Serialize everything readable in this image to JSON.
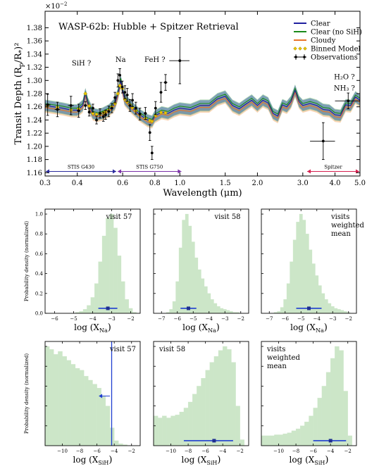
{
  "chart_data": [
    {
      "type": "line",
      "title": "WASP-62b: Hubble + Spitzer Retrieval",
      "ylabel": "Transit Depth (R_p/R_*)^2",
      "ylabel_main": "Transit Depth",
      "ylabel_sub": "p",
      "ylabel_star": "*",
      "offset_label": "×10",
      "offset_exp": "−2",
      "xlabel": "Wavelength (μm)",
      "x_scale": "log",
      "xlim": [
        0.3,
        5.0
      ],
      "ylim": [
        1.155,
        1.405
      ],
      "xticks": [
        {
          "v": 0.3,
          "t": "0.3"
        },
        {
          "v": 0.4,
          "t": "0.4"
        },
        {
          "v": 0.6,
          "t": "0.6"
        },
        {
          "v": 0.8,
          "t": "0.8"
        },
        {
          "v": 1.0,
          "t": "1.0"
        },
        {
          "v": 1.5,
          "t": "1.5"
        },
        {
          "v": 2.0,
          "t": "2.0"
        },
        {
          "v": 3.0,
          "t": "3.0"
        },
        {
          "v": 4.0,
          "t": "4.0"
        },
        {
          "v": 5.0,
          "t": "5.0"
        }
      ],
      "yticks": [
        {
          "v": 1.16,
          "t": "1.16"
        },
        {
          "v": 1.18,
          "t": "1.18"
        },
        {
          "v": 1.2,
          "t": "1.20"
        },
        {
          "v": 1.22,
          "t": "1.22"
        },
        {
          "v": 1.24,
          "t": "1.24"
        },
        {
          "v": 1.26,
          "t": "1.26"
        },
        {
          "v": 1.28,
          "t": "1.28"
        },
        {
          "v": 1.3,
          "t": "1.30"
        },
        {
          "v": 1.32,
          "t": "1.32"
        },
        {
          "v": 1.34,
          "t": "1.34"
        },
        {
          "v": 1.36,
          "t": "1.36"
        },
        {
          "v": 1.38,
          "t": "1.38"
        }
      ],
      "legend": {
        "placement": "top-right",
        "entries": [
          {
            "label": "Clear",
            "color": "#1f1f9f",
            "kind": "line"
          },
          {
            "label": "Clear (no SiH)",
            "color": "#1a8a1a",
            "kind": "line"
          },
          {
            "label": "Cloudy",
            "color": "#e8742a",
            "kind": "line"
          },
          {
            "label": "Binned Model",
            "color": "#e8c200",
            "kind": "diamond"
          },
          {
            "label": "Observations",
            "color": "#000000",
            "kind": "errorbar"
          }
        ]
      },
      "annotations": [
        {
          "text": "SiH ?",
          "x": 0.415,
          "y": 1.323
        },
        {
          "text": "Na",
          "x": 0.589,
          "y": 1.328
        },
        {
          "text": "FeH ?",
          "x": 0.8,
          "y": 1.328
        },
        {
          "text": "H₂O ?",
          "x": 4.35,
          "y": 1.302
        },
        {
          "text": "NH₃ ?",
          "x": 4.35,
          "y": 1.285
        }
      ],
      "instrument_ranges": [
        {
          "label": "STIS G430",
          "x0": 0.3,
          "x1": 0.57,
          "y": 1.162,
          "color": "#2b2b9e"
        },
        {
          "label": "STIS G750",
          "x0": 0.57,
          "x1": 1.02,
          "y": 1.162,
          "color": "#7b2fa8"
        },
        {
          "label": "Spitzer",
          "x0": 3.1,
          "x1": 5.0,
          "y": 1.162,
          "color": "#d6204f"
        }
      ],
      "model_clear": {
        "x": [
          0.3,
          0.35,
          0.38,
          0.4,
          0.42,
          0.43,
          0.44,
          0.46,
          0.48,
          0.5,
          0.53,
          0.56,
          0.575,
          0.585,
          0.59,
          0.595,
          0.61,
          0.65,
          0.7,
          0.75,
          0.78,
          0.8,
          0.85,
          0.9,
          0.95,
          1.0,
          1.1,
          1.2,
          1.3,
          1.4,
          1.5,
          1.6,
          1.7,
          1.8,
          1.9,
          2.0,
          2.1,
          2.2,
          2.3,
          2.4,
          2.5,
          2.6,
          2.7,
          2.8,
          2.9,
          3.0,
          3.2,
          3.4,
          3.6,
          3.8,
          4.0,
          4.2,
          4.4,
          4.6,
          4.8,
          5.0
        ],
        "y": [
          1.262,
          1.258,
          1.255,
          1.255,
          1.262,
          1.28,
          1.265,
          1.25,
          1.248,
          1.25,
          1.255,
          1.265,
          1.28,
          1.292,
          1.3,
          1.292,
          1.272,
          1.26,
          1.248,
          1.24,
          1.238,
          1.246,
          1.252,
          1.25,
          1.255,
          1.258,
          1.256,
          1.262,
          1.262,
          1.272,
          1.276,
          1.262,
          1.257,
          1.264,
          1.27,
          1.262,
          1.27,
          1.266,
          1.25,
          1.246,
          1.263,
          1.26,
          1.268,
          1.285,
          1.268,
          1.262,
          1.265,
          1.262,
          1.256,
          1.255,
          1.248,
          1.247,
          1.263,
          1.262,
          1.275,
          1.27
        ]
      },
      "observations": [
        {
          "x": 0.307,
          "y": 1.263,
          "xe": 0.008,
          "ye": 0.016
        },
        {
          "x": 0.335,
          "y": 1.256,
          "xe": 0.008,
          "ye": 0.011
        },
        {
          "x": 0.378,
          "y": 1.262,
          "xe": 0.01,
          "ye": 0.014
        },
        {
          "x": 0.405,
          "y": 1.254,
          "xe": 0.006,
          "ye": 0.01
        },
        {
          "x": 0.43,
          "y": 1.262,
          "xe": 0.006,
          "ye": 0.006
        },
        {
          "x": 0.445,
          "y": 1.252,
          "xe": 0.005,
          "ye": 0.006
        },
        {
          "x": 0.46,
          "y": 1.258,
          "xe": 0.005,
          "ye": 0.006
        },
        {
          "x": 0.475,
          "y": 1.24,
          "xe": 0.005,
          "ye": 0.006
        },
        {
          "x": 0.49,
          "y": 1.25,
          "xe": 0.005,
          "ye": 0.007
        },
        {
          "x": 0.505,
          "y": 1.245,
          "xe": 0.005,
          "ye": 0.007
        },
        {
          "x": 0.515,
          "y": 1.248,
          "xe": 0.004,
          "ye": 0.007
        },
        {
          "x": 0.53,
          "y": 1.253,
          "xe": 0.004,
          "ye": 0.008
        },
        {
          "x": 0.545,
          "y": 1.258,
          "xe": 0.004,
          "ye": 0.007
        },
        {
          "x": 0.56,
          "y": 1.274,
          "xe": 0.004,
          "ye": 0.008
        },
        {
          "x": 0.575,
          "y": 1.3,
          "xe": 0.003,
          "ye": 0.01
        },
        {
          "x": 0.585,
          "y": 1.308,
          "xe": 0.004,
          "ye": 0.01
        },
        {
          "x": 0.598,
          "y": 1.29,
          "xe": 0.005,
          "ye": 0.009
        },
        {
          "x": 0.612,
          "y": 1.282,
          "xe": 0.005,
          "ye": 0.01
        },
        {
          "x": 0.625,
          "y": 1.278,
          "xe": 0.006,
          "ye": 0.01
        },
        {
          "x": 0.64,
          "y": 1.262,
          "xe": 0.006,
          "ye": 0.009
        },
        {
          "x": 0.655,
          "y": 1.27,
          "xe": 0.007,
          "ye": 0.01
        },
        {
          "x": 0.675,
          "y": 1.258,
          "xe": 0.007,
          "ye": 0.009
        },
        {
          "x": 0.7,
          "y": 1.249,
          "xe": 0.008,
          "ye": 0.009
        },
        {
          "x": 0.735,
          "y": 1.25,
          "xe": 0.01,
          "ye": 0.009
        },
        {
          "x": 0.765,
          "y": 1.221,
          "xe": 0.008,
          "ye": 0.012
        },
        {
          "x": 0.78,
          "y": 1.19,
          "xe": 0.006,
          "ye": 0.01
        },
        {
          "x": 0.805,
          "y": 1.258,
          "xe": 0.008,
          "ye": 0.01
        },
        {
          "x": 0.845,
          "y": 1.282,
          "xe": 0.01,
          "ye": 0.015
        },
        {
          "x": 0.88,
          "y": 1.297,
          "xe": 0.015,
          "ye": 0.012
        },
        {
          "x": 1.0,
          "y": 1.33,
          "xe": 0.09,
          "ye": 0.035
        },
        {
          "x": 3.6,
          "y": 1.208,
          "xe": 0.4,
          "ye": 0.028
        },
        {
          "x": 4.5,
          "y": 1.269,
          "xe": 0.5,
          "ye": 0.012
        }
      ]
    },
    {
      "type": "histogram",
      "panel": "Na, visit 57",
      "label": "visit 57",
      "xlabel_main": "log (X",
      "xlabel_sub": "Na",
      "ylabel": "Probability density (normalized)",
      "xlim": [
        -6.5,
        -1.5
      ],
      "ylim": [
        0,
        1.05
      ],
      "xticks": [
        -6,
        -5,
        -4,
        -3,
        -2
      ],
      "yticks": [
        0.0,
        0.2,
        0.4,
        0.6,
        0.8,
        1.0
      ],
      "centers": [
        -6.4,
        -6.2,
        -6.0,
        -5.8,
        -5.6,
        -5.4,
        -5.2,
        -5.0,
        -4.8,
        -4.6,
        -4.4,
        -4.2,
        -4.0,
        -3.8,
        -3.6,
        -3.4,
        -3.2,
        -3.0,
        -2.8,
        -2.6,
        -2.4,
        -2.2,
        -2.0,
        -1.8,
        -1.6
      ],
      "values": [
        0,
        0,
        0,
        0,
        0,
        0,
        0,
        0,
        0.01,
        0.02,
        0.04,
        0.08,
        0.16,
        0.3,
        0.52,
        0.78,
        0.96,
        1.0,
        0.86,
        0.58,
        0.32,
        0.14,
        0.05,
        0.01,
        0
      ],
      "marker": {
        "center": -3.2,
        "low": -3.7,
        "high": -2.7
      }
    },
    {
      "type": "histogram",
      "panel": "Na, visit 58",
      "label": "visit 58",
      "xlabel_main": "log (X",
      "xlabel_sub": "Na",
      "xlim": [
        -7.5,
        -1.5
      ],
      "ylim": [
        0,
        1.05
      ],
      "xticks": [
        -7,
        -6,
        -5,
        -4,
        -3,
        -2
      ],
      "centers": [
        -7.4,
        -7.2,
        -7.0,
        -6.8,
        -6.6,
        -6.4,
        -6.2,
        -6.0,
        -5.8,
        -5.6,
        -5.4,
        -5.2,
        -5.0,
        -4.8,
        -4.6,
        -4.4,
        -4.2,
        -4.0,
        -3.8,
        -3.6,
        -3.4,
        -3.2,
        -3.0,
        -2.8,
        -2.6,
        -2.4,
        -2.2,
        -2.0,
        -1.8,
        -1.6
      ],
      "values": [
        0,
        0,
        0,
        0,
        0.01,
        0.04,
        0.12,
        0.32,
        0.66,
        0.94,
        1.0,
        0.88,
        0.72,
        0.56,
        0.44,
        0.35,
        0.27,
        0.2,
        0.14,
        0.1,
        0.07,
        0.05,
        0.04,
        0.03,
        0.02,
        0.01,
        0.01,
        0,
        0,
        0
      ],
      "marker": {
        "center": -5.3,
        "low": -5.8,
        "high": -4.8
      }
    },
    {
      "type": "histogram",
      "panel": "Na, visits weighted mean",
      "label_lines": [
        "visits",
        "weighted",
        "mean"
      ],
      "xlabel_main": "log (X",
      "xlabel_sub": "Na",
      "xlim": [
        -7.5,
        -1.5
      ],
      "ylim": [
        0,
        1.05
      ],
      "xticks": [
        -7,
        -6,
        -5,
        -4,
        -3,
        -2
      ],
      "centers": [
        -7.4,
        -7.2,
        -7.0,
        -6.8,
        -6.6,
        -6.4,
        -6.2,
        -6.0,
        -5.8,
        -5.6,
        -5.4,
        -5.2,
        -5.0,
        -4.8,
        -4.6,
        -4.4,
        -4.2,
        -4.0,
        -3.8,
        -3.6,
        -3.4,
        -3.2,
        -3.0,
        -2.8,
        -2.6,
        -2.4,
        -2.2,
        -2.0,
        -1.8,
        -1.6
      ],
      "values": [
        0,
        0,
        0,
        0,
        0.01,
        0.02,
        0.06,
        0.14,
        0.3,
        0.52,
        0.74,
        0.92,
        1.0,
        0.94,
        0.8,
        0.64,
        0.5,
        0.38,
        0.28,
        0.2,
        0.14,
        0.1,
        0.07,
        0.05,
        0.04,
        0.03,
        0.02,
        0.01,
        0,
        0
      ],
      "marker": {
        "center": -4.5,
        "low": -5.3,
        "high": -3.7
      }
    },
    {
      "type": "histogram",
      "panel": "SiH, visit 57",
      "label": "visit 57",
      "xlabel_main": "log (X",
      "xlabel_sub": "SiH",
      "ylabel": "Probability density (normalized)",
      "xlim": [
        -12,
        -1
      ],
      "ylim": [
        0,
        1.05
      ],
      "xticks": [
        -10,
        -8,
        -6,
        -4,
        -2
      ],
      "centers": [
        -11.75,
        -11.25,
        -10.75,
        -10.25,
        -9.75,
        -9.25,
        -8.75,
        -8.25,
        -7.75,
        -7.25,
        -6.75,
        -6.25,
        -5.75,
        -5.25,
        -4.75,
        -4.25,
        -3.75,
        -3.25,
        -2.75,
        -2.25,
        -1.75,
        -1.25
      ],
      "values": [
        1.0,
        0.97,
        0.92,
        0.95,
        0.9,
        0.86,
        0.82,
        0.78,
        0.76,
        0.7,
        0.66,
        0.62,
        0.58,
        0.5,
        0.4,
        0.18,
        0.05,
        0.02,
        0.01,
        0,
        0,
        0
      ],
      "limit_x": -4.3,
      "arrow": {
        "from": -4.5,
        "to": -5.8,
        "y": 0.5
      }
    },
    {
      "type": "histogram",
      "panel": "SiH, visit 58",
      "label": "visit 58",
      "xlabel_main": "log (X",
      "xlabel_sub": "SiH",
      "xlim": [
        -12,
        -1
      ],
      "ylim": [
        0,
        1.05
      ],
      "xticks": [
        -10,
        -8,
        -6,
        -4,
        -2
      ],
      "centers": [
        -11.75,
        -11.25,
        -10.75,
        -10.25,
        -9.75,
        -9.25,
        -8.75,
        -8.25,
        -7.75,
        -7.25,
        -6.75,
        -6.25,
        -5.75,
        -5.25,
        -4.75,
        -4.25,
        -3.75,
        -3.25,
        -2.75,
        -2.25,
        -1.75,
        -1.25
      ],
      "values": [
        0.3,
        0.28,
        0.3,
        0.28,
        0.3,
        0.31,
        0.34,
        0.38,
        0.44,
        0.52,
        0.6,
        0.68,
        0.76,
        0.84,
        0.9,
        0.96,
        1.0,
        0.97,
        0.84,
        0.4,
        0.06,
        0
      ],
      "marker": {
        "center": -5.0,
        "low": -8.5,
        "high": -2.8
      }
    },
    {
      "type": "histogram",
      "panel": "SiH, visits weighted mean",
      "label_lines": [
        "visits",
        "weighted",
        "mean"
      ],
      "xlabel_main": "log (X",
      "xlabel_sub": "SiH",
      "xlim": [
        -12,
        -1
      ],
      "ylim": [
        0,
        1.05
      ],
      "xticks": [
        -10,
        -8,
        -6,
        -4,
        -2
      ],
      "centers": [
        -11.75,
        -11.25,
        -10.75,
        -10.25,
        -9.75,
        -9.25,
        -8.75,
        -8.25,
        -7.75,
        -7.25,
        -6.75,
        -6.25,
        -5.75,
        -5.25,
        -4.75,
        -4.25,
        -3.75,
        -3.25,
        -2.75,
        -2.25,
        -1.75,
        -1.25
      ],
      "values": [
        0.1,
        0.1,
        0.1,
        0.11,
        0.11,
        0.12,
        0.13,
        0.15,
        0.17,
        0.2,
        0.24,
        0.3,
        0.38,
        0.48,
        0.6,
        0.74,
        0.88,
        1.0,
        0.96,
        0.55,
        0.1,
        0
      ],
      "marker": {
        "center": -4.0,
        "low": -6.0,
        "high": -2.2
      }
    }
  ]
}
